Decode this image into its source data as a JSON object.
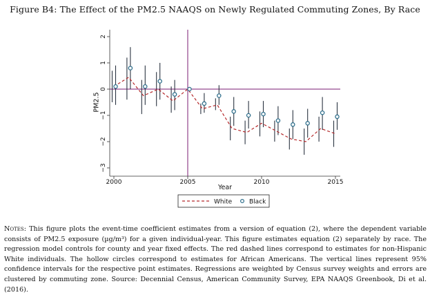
{
  "figure": {
    "title": "Figure B4: The Effect of the PM2.5 NAAQS on Newly Regulated Commuting Zones, By Race"
  },
  "notes": {
    "lead": "Notes:",
    "body": " This figure plots the event-time coefficient estimates from a version of equation (2), where the dependent variable consists of PM2.5 exposure (µg/m³) for a given individual-year. This figure estimates equation (2) separately by race. The regression model controls for county and year fixed effects. The red dashed lines correspond to estimates for non-Hispanic White individuals. The hollow circles correspond to estimates for African Americans. The vertical lines represent 95% confidence intervals for the respective point estimates. Regressions are weighted by Census survey weights and errors are clustered by commuting zone. Source: Decennial Census, American Community Survey, EPA NAAQS Greenbook, Di et al. (2016)."
  },
  "colors": {
    "white_series": "#b5282a",
    "black_series": "#2f6f8c",
    "ci_line": "#2a3340",
    "reference_line": "#7a1a72",
    "axis": "#333333"
  },
  "chart_data": {
    "type": "line",
    "xlabel": "Year",
    "ylabel": "PM2.5",
    "xlim": [
      2000,
      2015
    ],
    "ylim": [
      -3,
      2
    ],
    "x_ticks": [
      2000,
      2005,
      2010,
      2015
    ],
    "y_ticks": [
      -3,
      -2,
      -1,
      0,
      1,
      2
    ],
    "reference_lines": {
      "vertical_x": 2005,
      "horizontal_y": 0
    },
    "grid": false,
    "legend_position": "bottom",
    "series": [
      {
        "name": "White",
        "style": "dashed-line",
        "x": [
          2000,
          2001,
          2002,
          2003,
          2004,
          2005,
          2006,
          2007,
          2008,
          2009,
          2010,
          2011,
          2012,
          2013,
          2014,
          2015
        ],
        "values": [
          0.1,
          0.45,
          -0.25,
          0.0,
          -0.45,
          0.0,
          -0.75,
          -0.6,
          -1.5,
          -1.65,
          -1.3,
          -1.6,
          -1.9,
          -2.0,
          -1.5,
          -1.7
        ],
        "ci": [
          [
            -0.5,
            0.7
          ],
          [
            -0.4,
            1.2
          ],
          [
            -0.95,
            0.35
          ],
          [
            -0.65,
            0.65
          ],
          [
            -0.9,
            0.1
          ],
          [
            0.0,
            0.0
          ],
          [
            -0.95,
            -0.55
          ],
          [
            -0.8,
            -0.35
          ],
          [
            -1.95,
            -1.05
          ],
          [
            -2.1,
            -1.2
          ],
          [
            -1.8,
            -0.85
          ],
          [
            -2.0,
            -1.2
          ],
          [
            -2.3,
            -1.5
          ],
          [
            -2.5,
            -1.5
          ],
          [
            -2.0,
            -1.05
          ],
          [
            -2.2,
            -1.2
          ]
        ]
      },
      {
        "name": "Black",
        "style": "hollow-circle",
        "x": [
          2000,
          2001,
          2002,
          2003,
          2004,
          2005,
          2006,
          2007,
          2008,
          2009,
          2010,
          2011,
          2012,
          2013,
          2014,
          2015
        ],
        "values": [
          0.1,
          0.8,
          0.1,
          0.3,
          -0.2,
          0.0,
          -0.55,
          -0.25,
          -0.85,
          -1.0,
          -0.95,
          -1.2,
          -1.35,
          -1.3,
          -0.9,
          -1.05
        ],
        "ci": [
          [
            -0.6,
            0.9
          ],
          [
            0.0,
            1.6
          ],
          [
            -0.6,
            0.9
          ],
          [
            -0.4,
            1.0
          ],
          [
            -0.8,
            0.35
          ],
          [
            0.0,
            0.0
          ],
          [
            -0.9,
            -0.15
          ],
          [
            -0.6,
            0.15
          ],
          [
            -1.4,
            -0.3
          ],
          [
            -1.5,
            -0.45
          ],
          [
            -1.45,
            -0.45
          ],
          [
            -1.75,
            -0.65
          ],
          [
            -1.9,
            -0.8
          ],
          [
            -1.85,
            -0.75
          ],
          [
            -1.55,
            -0.3
          ],
          [
            -1.55,
            -0.5
          ]
        ]
      }
    ]
  }
}
